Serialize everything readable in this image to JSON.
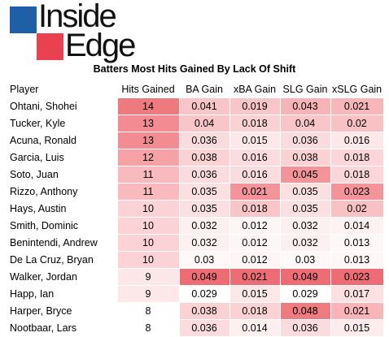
{
  "logo": {
    "line1": "Inside",
    "line2": "Edge",
    "colors": {
      "blue": "#1f5fa7",
      "red": "#e8414f"
    }
  },
  "title": "Batters Most Hits Gained By Lack Of Shift",
  "table": {
    "columns": [
      "Player",
      "Hits Gained",
      "BA Gain",
      "xBA Gain",
      "SLG Gain",
      "xSLG Gain"
    ],
    "rows": [
      {
        "cells": [
          "Ohtani, Shohei",
          "14",
          "0.041",
          "0.019",
          "0.043",
          "0.021"
        ],
        "colors": [
          "#ffffff",
          "#ee7a80",
          "#f8c6c9",
          "#f8c6c9",
          "#f6b4b8",
          "#f6b6ba"
        ]
      },
      {
        "cells": [
          "Tucker, Kyle",
          "13",
          "0.04",
          "0.018",
          "0.04",
          "0.02"
        ],
        "colors": [
          "#ffffff",
          "#f28c92",
          "#f8c6c9",
          "#fad2d4",
          "#f8c6c9",
          "#f8c1c4"
        ]
      },
      {
        "cells": [
          "Acuna, Ronald",
          "13",
          "0.036",
          "0.015",
          "0.036",
          "0.016"
        ],
        "colors": [
          "#ffffff",
          "#f28c92",
          "#fbdcde",
          "#fde8e9",
          "#fbdcde",
          "#fde8e9"
        ]
      },
      {
        "cells": [
          "Garcia, Luis",
          "12",
          "0.038",
          "0.016",
          "0.038",
          "0.018"
        ],
        "colors": [
          "#ffffff",
          "#f5a2a7",
          "#fad2d4",
          "#fbdcde",
          "#fad2d4",
          "#fbd6d8"
        ]
      },
      {
        "cells": [
          "Soto, Juan",
          "11",
          "0.036",
          "0.016",
          "0.045",
          "0.018"
        ],
        "colors": [
          "#ffffff",
          "#f8babe",
          "#fbdcde",
          "#fbdcde",
          "#f29499",
          "#fbd6d8"
        ]
      },
      {
        "cells": [
          "Rizzo, Anthony",
          "11",
          "0.035",
          "0.021",
          "0.035",
          "0.023"
        ],
        "colors": [
          "#ffffff",
          "#f8babe",
          "#fbe0e2",
          "#f29499",
          "#fbe0e2",
          "#f29499"
        ]
      },
      {
        "cells": [
          "Hays, Austin",
          "10",
          "0.035",
          "0.018",
          "0.035",
          "0.02"
        ],
        "colors": [
          "#ffffff",
          "#fbd2d5",
          "#fbe0e2",
          "#f8c6c9",
          "#fbe0e2",
          "#f8c1c4"
        ]
      },
      {
        "cells": [
          "Smith, Dominic",
          "10",
          "0.032",
          "0.012",
          "0.032",
          "0.014"
        ],
        "colors": [
          "#ffffff",
          "#fbd2d5",
          "#fdf0f1",
          "#fef5f6",
          "#fdf0f1",
          "#fef2f3"
        ]
      },
      {
        "cells": [
          "Benintendi, Andrew",
          "10",
          "0.032",
          "0.012",
          "0.032",
          "0.013"
        ],
        "colors": [
          "#ffffff",
          "#fbd2d5",
          "#fdf0f1",
          "#fef5f6",
          "#fdf0f1",
          "#fef7f8"
        ]
      },
      {
        "cells": [
          "De La Cruz, Bryan",
          "10",
          "0.03",
          "0.012",
          "0.03",
          "0.013"
        ],
        "colors": [
          "#ffffff",
          "#fbd2d5",
          "#fef8f8",
          "#fef5f6",
          "#fef8f8",
          "#fef7f8"
        ]
      },
      {
        "cells": [
          "Walker, Jordan",
          "9",
          "0.049",
          "0.021",
          "0.049",
          "0.023"
        ],
        "colors": [
          "#ffffff",
          "#fde8e9",
          "#ee6d74",
          "#ee6d74",
          "#ee6d74",
          "#ee6d74"
        ]
      },
      {
        "cells": [
          "Happ, Ian",
          "9",
          "0.029",
          "0.015",
          "0.029",
          "0.017"
        ],
        "colors": [
          "#ffffff",
          "#fde8e9",
          "#ffffff",
          "#fde8e9",
          "#ffffff",
          "#fde0e2"
        ]
      },
      {
        "cells": [
          "Harper, Bryce",
          "8",
          "0.038",
          "0.018",
          "0.048",
          "0.021"
        ],
        "colors": [
          "#ffffff",
          "#ffffff",
          "#fad2d4",
          "#fad2d4",
          "#ef7a80",
          "#f8b4b8"
        ]
      },
      {
        "cells": [
          "Nootbaar, Lars",
          "8",
          "0.036",
          "0.014",
          "0.036",
          "0.015"
        ],
        "colors": [
          "#ffffff",
          "#ffffff",
          "#fbdcde",
          "#fef0f1",
          "#fbdcde",
          "#fdeced"
        ]
      }
    ]
  }
}
